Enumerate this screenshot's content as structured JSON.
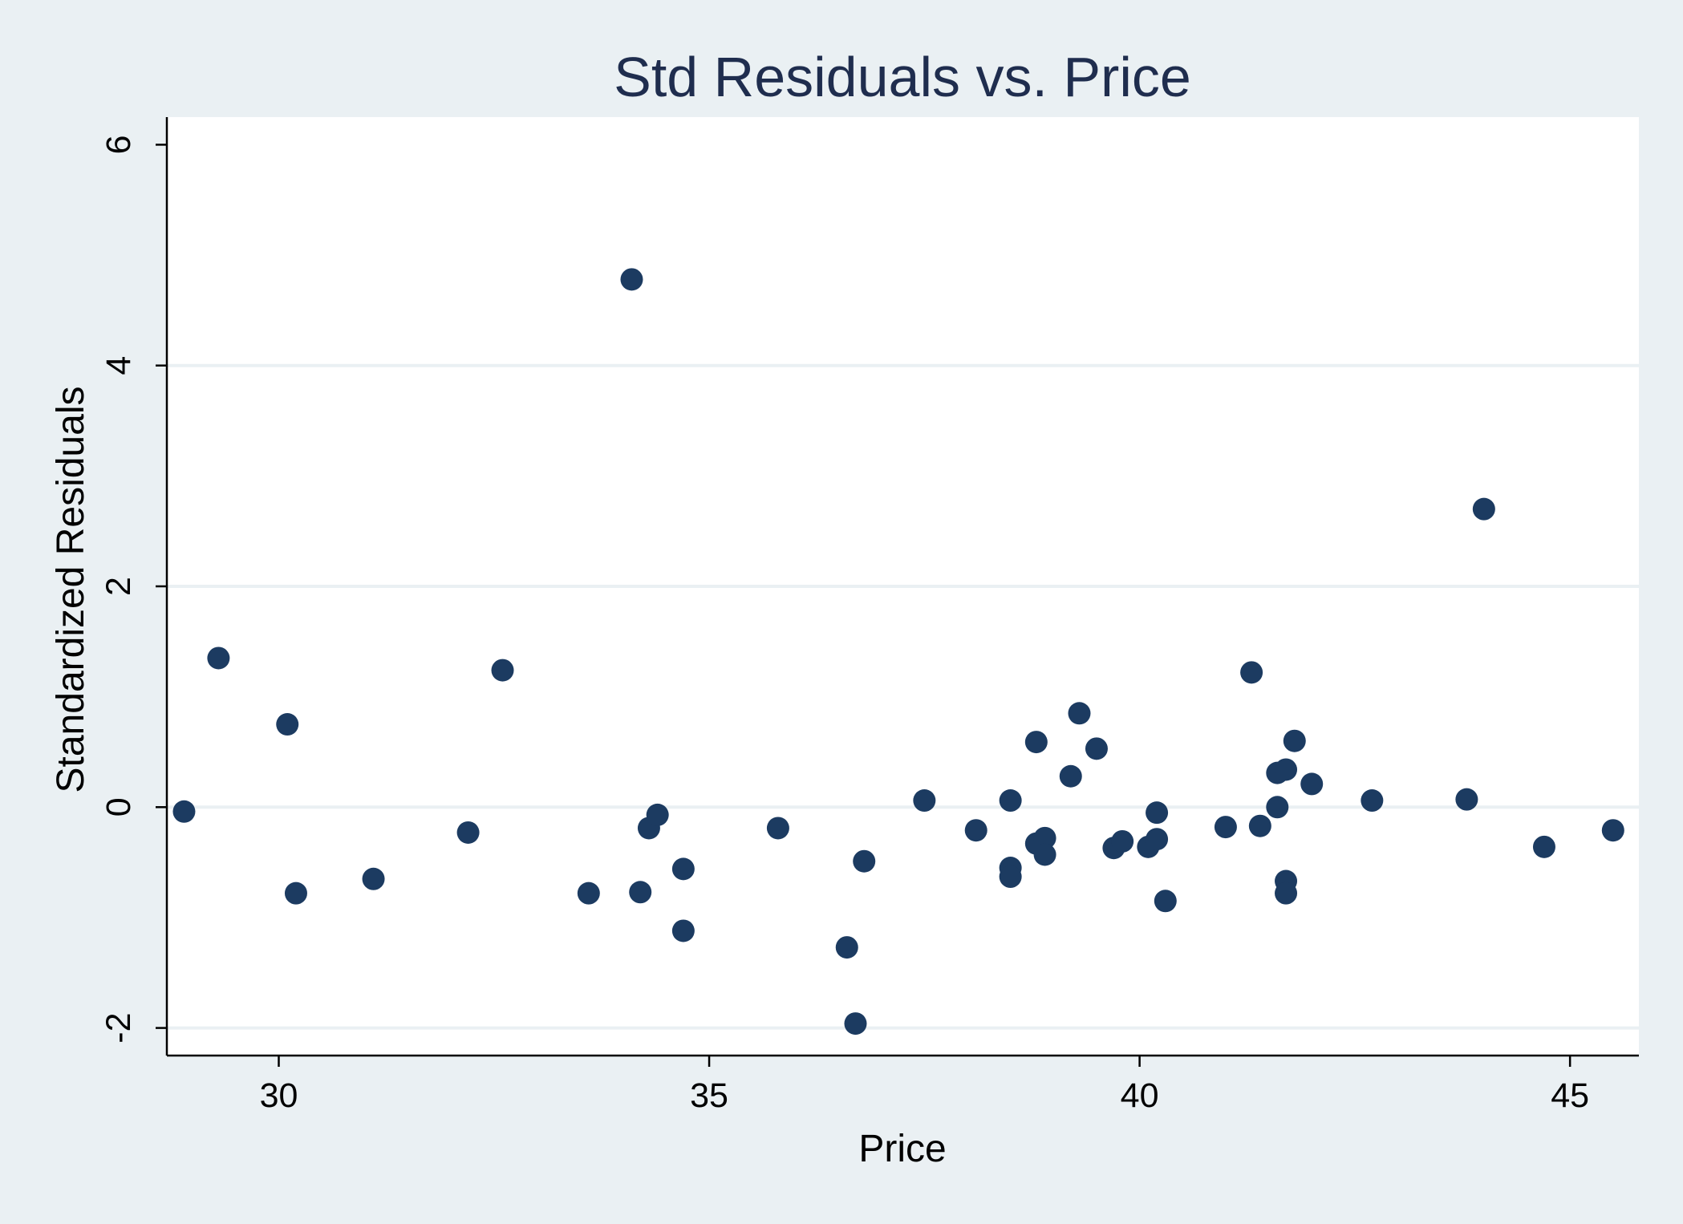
{
  "colors": {
    "page_background": "#eaf0f3",
    "plot_background": "#ffffff",
    "gridline": "#eaf0f3",
    "axis": "#000000",
    "marker": "#1c3b61",
    "title": "#1f2d4e"
  },
  "chart_data": {
    "type": "scatter",
    "title": "Std Residuals vs. Price",
    "xlabel": "Price",
    "ylabel": "Standardized Residuals",
    "xlim": [
      28.7,
      45.8
    ],
    "ylim": [
      -2.25,
      6.25
    ],
    "xticks": [
      30,
      35,
      40,
      45
    ],
    "xtick_labels": [
      "30",
      "35",
      "40",
      "45"
    ],
    "yticks": [
      -2,
      0,
      2,
      4,
      6
    ],
    "ytick_labels": [
      "-2",
      "0",
      "2",
      "4",
      "6"
    ],
    "grid": "horizontal",
    "legend": "none",
    "marker": "filled circle",
    "points": [
      {
        "x": 28.9,
        "y": -0.04
      },
      {
        "x": 29.3,
        "y": 1.35
      },
      {
        "x": 30.1,
        "y": 0.75
      },
      {
        "x": 30.2,
        "y": -0.78
      },
      {
        "x": 31.1,
        "y": -0.65
      },
      {
        "x": 32.2,
        "y": -0.23
      },
      {
        "x": 32.6,
        "y": 1.24
      },
      {
        "x": 33.6,
        "y": -0.78
      },
      {
        "x": 34.1,
        "y": 4.78
      },
      {
        "x": 34.2,
        "y": -0.77
      },
      {
        "x": 34.3,
        "y": -0.19
      },
      {
        "x": 34.4,
        "y": -0.07
      },
      {
        "x": 34.7,
        "y": -0.56
      },
      {
        "x": 34.7,
        "y": -1.12
      },
      {
        "x": 35.8,
        "y": -0.19
      },
      {
        "x": 36.6,
        "y": -1.27
      },
      {
        "x": 36.7,
        "y": -1.96
      },
      {
        "x": 36.8,
        "y": -0.49
      },
      {
        "x": 37.5,
        "y": 0.06
      },
      {
        "x": 38.1,
        "y": -0.21
      },
      {
        "x": 38.5,
        "y": 0.06
      },
      {
        "x": 38.5,
        "y": -0.55
      },
      {
        "x": 38.5,
        "y": -0.63
      },
      {
        "x": 38.8,
        "y": 0.59
      },
      {
        "x": 38.8,
        "y": -0.33
      },
      {
        "x": 38.9,
        "y": -0.28
      },
      {
        "x": 38.9,
        "y": -0.43
      },
      {
        "x": 39.2,
        "y": 0.28
      },
      {
        "x": 39.3,
        "y": 0.85
      },
      {
        "x": 39.5,
        "y": 0.53
      },
      {
        "x": 39.7,
        "y": -0.37
      },
      {
        "x": 39.8,
        "y": -0.31
      },
      {
        "x": 40.1,
        "y": -0.36
      },
      {
        "x": 40.2,
        "y": -0.05
      },
      {
        "x": 40.2,
        "y": -0.29
      },
      {
        "x": 40.3,
        "y": -0.85
      },
      {
        "x": 41.0,
        "y": -0.18
      },
      {
        "x": 41.3,
        "y": 1.22
      },
      {
        "x": 41.4,
        "y": -0.17
      },
      {
        "x": 41.6,
        "y": 0.31
      },
      {
        "x": 41.6,
        "y": 0.0
      },
      {
        "x": 41.7,
        "y": 0.34
      },
      {
        "x": 41.7,
        "y": -0.67
      },
      {
        "x": 41.7,
        "y": -0.78
      },
      {
        "x": 41.8,
        "y": 0.6
      },
      {
        "x": 42.0,
        "y": 0.21
      },
      {
        "x": 42.7,
        "y": 0.06
      },
      {
        "x": 43.8,
        "y": 0.07
      },
      {
        "x": 44.0,
        "y": 2.7
      },
      {
        "x": 44.7,
        "y": -0.36
      },
      {
        "x": 45.5,
        "y": -0.21
      }
    ]
  }
}
